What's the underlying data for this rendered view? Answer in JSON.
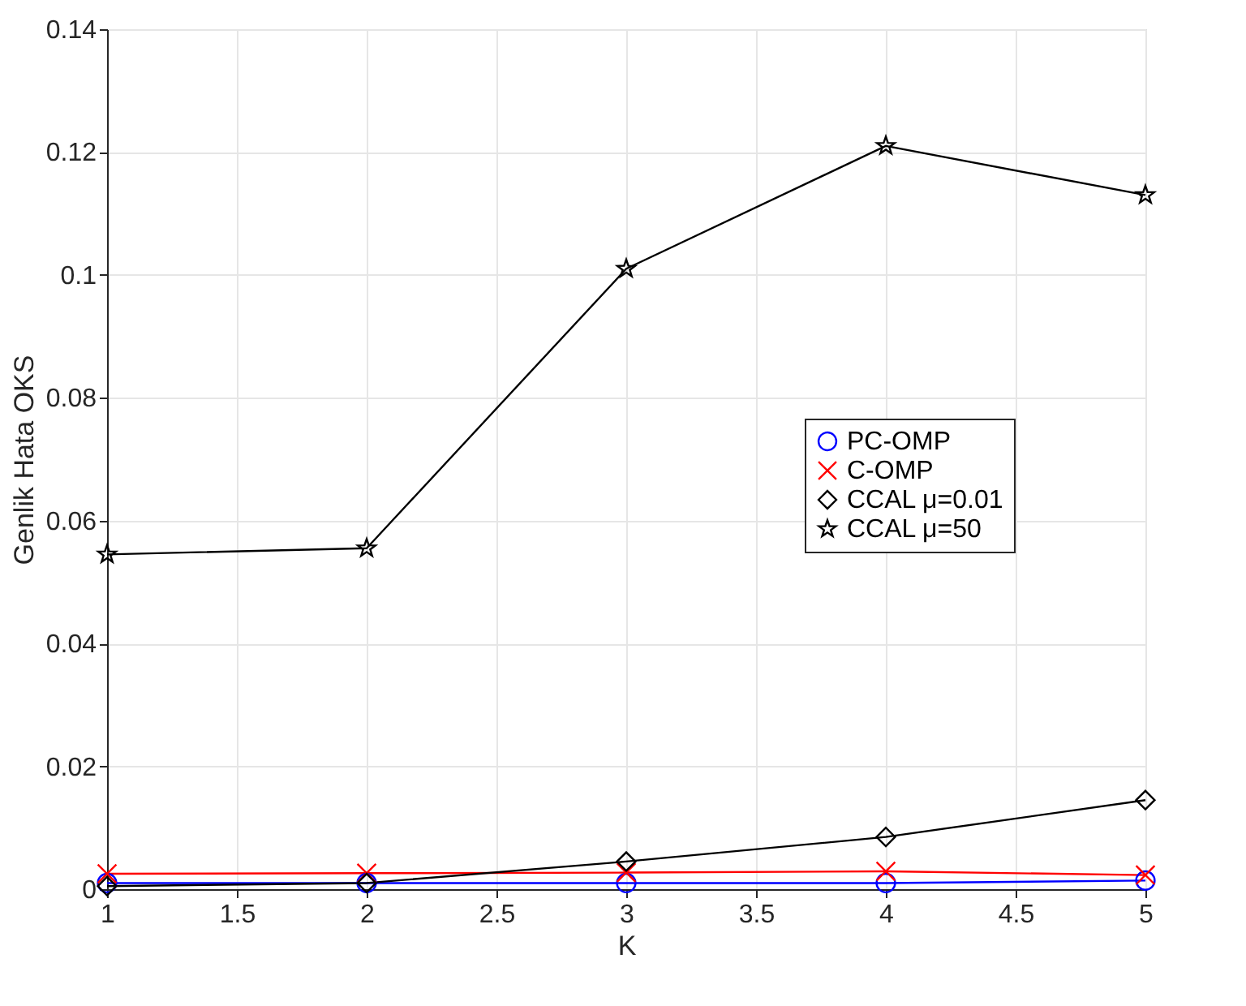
{
  "chart_data": {
    "type": "line",
    "xlabel": "K",
    "ylabel": "Genlik Hata OKS",
    "x": [
      1,
      2,
      3,
      4,
      5
    ],
    "series": [
      {
        "name": "PC-OMP",
        "color": "#0000ff",
        "marker": "circle",
        "values": [
          0.001,
          0.001,
          0.001,
          0.001,
          0.0014
        ]
      },
      {
        "name": "C-OMP",
        "color": "#ff0000",
        "marker": "cross",
        "values": [
          0.0025,
          0.0026,
          0.0027,
          0.0029,
          0.0023
        ]
      },
      {
        "name": "CCAL μ=0.01",
        "color": "#000000",
        "marker": "diamond",
        "values": [
          0.0005,
          0.001,
          0.0045,
          0.0085,
          0.0145
        ]
      },
      {
        "name": "CCAL μ=50",
        "color": "#000000",
        "marker": "star",
        "values": [
          0.0545,
          0.0555,
          0.101,
          0.121,
          0.113
        ]
      }
    ],
    "xlim": [
      1,
      5
    ],
    "xticks": [
      1,
      1.5,
      2,
      2.5,
      3,
      3.5,
      4,
      4.5,
      5
    ],
    "ylim": [
      0,
      0.14
    ],
    "yticks": [
      0,
      0.02,
      0.04,
      0.06,
      0.08,
      0.1,
      0.12,
      0.14
    ],
    "grid": true,
    "legend": "right",
    "line_style": "solid"
  }
}
